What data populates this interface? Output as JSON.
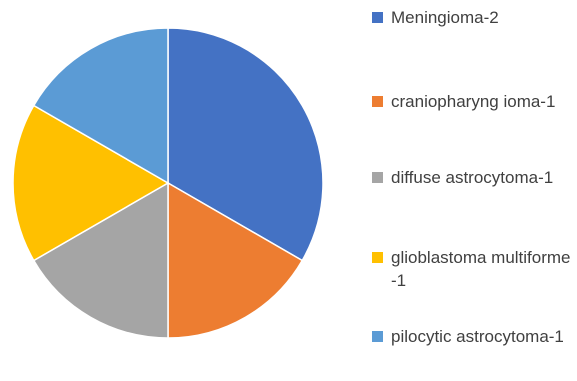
{
  "chart_data": {
    "type": "pie",
    "title": "",
    "categories": [
      "Meningioma-2",
      "craniopharyngioma-1",
      "diffuse astrocytoma-1",
      "glioblastoma multiforme-1",
      "pilocytic astrocytoma-1"
    ],
    "labels": [
      "Meningioma-2",
      "craniopharyng ioma-1",
      "diffuse astrocytoma-1",
      "glioblastoma multiforme-1",
      "pilocytic astrocytoma-1"
    ],
    "values": [
      2,
      1,
      1,
      1,
      1
    ],
    "colors": [
      "#4472C4",
      "#ED7D31",
      "#A5A5A5",
      "#FFC000",
      "#5B9BD5"
    ],
    "start_angle": "12 o'clock",
    "direction": "clockwise",
    "legend_position": "right"
  }
}
